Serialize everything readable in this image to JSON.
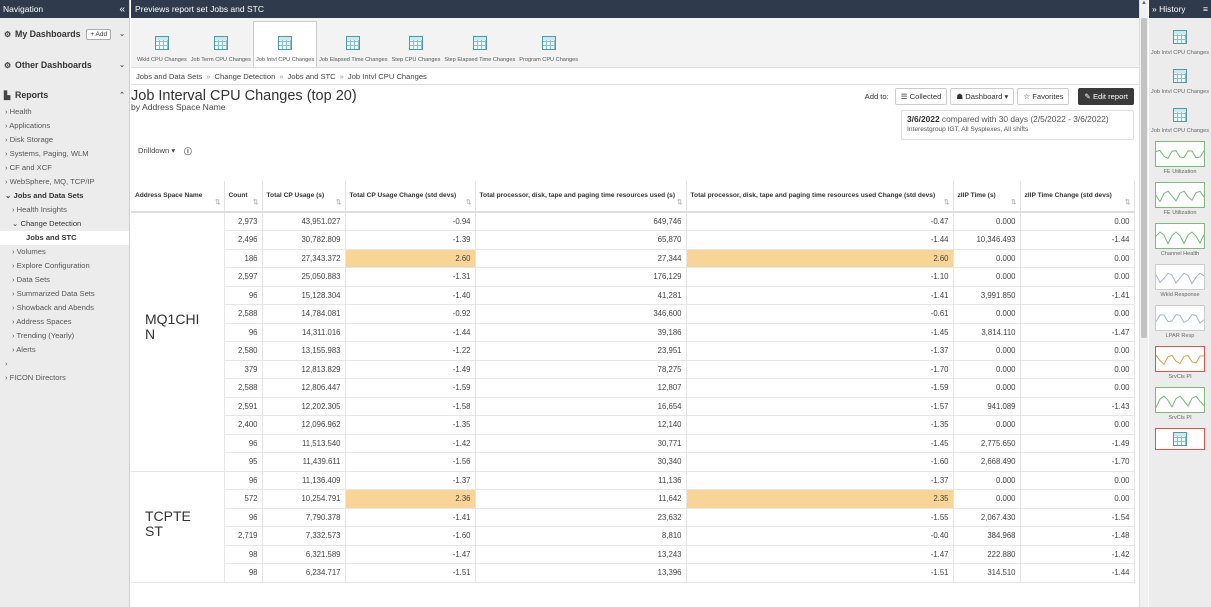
{
  "nav": {
    "header": "Navigation",
    "collapse_glyph": "«",
    "my_dashboards": "My Dashboards",
    "add_label": "+ Add",
    "other_dashboards": "Other Dashboards",
    "reports": "Reports",
    "items": [
      {
        "label": "› Health",
        "level": 1
      },
      {
        "label": "› Applications",
        "level": 1
      },
      {
        "label": "› Disk Storage",
        "level": 1
      },
      {
        "label": "› Systems, Paging, WLM",
        "level": 1
      },
      {
        "label": "› CF and XCF",
        "level": 1
      },
      {
        "label": "› WebSphere, MQ, TCP/IP",
        "level": 1
      },
      {
        "label": "⌄ Jobs and Data Sets",
        "level": 1,
        "bold": true
      },
      {
        "label": "› Health Insights",
        "level": 2
      },
      {
        "label": "⌄ Change Detection",
        "level": 2,
        "open": true
      },
      {
        "label": "Jobs and STC",
        "level": 3
      },
      {
        "label": "› Volumes",
        "level": 2
      },
      {
        "label": "› Explore Configuration",
        "level": 2
      },
      {
        "label": "› Data Sets",
        "level": 2
      },
      {
        "label": "› Summarized Data Sets",
        "level": 2
      },
      {
        "label": "› Showback and Abends",
        "level": 2
      },
      {
        "label": "› Address Spaces",
        "level": 2
      },
      {
        "label": "› Trending (Yearly)",
        "level": 2
      },
      {
        "label": "› Alerts",
        "level": 2
      },
      {
        "label": "›",
        "level": 1
      },
      {
        "label": "› FICON Directors",
        "level": 1
      }
    ]
  },
  "main": {
    "topbar": "Previews report set Jobs and STC",
    "reports": [
      {
        "label": "Wkld CPU Changes",
        "active": false
      },
      {
        "label": "Job Term CPU Changes",
        "active": false
      },
      {
        "label": "Job Intvl CPU Changes",
        "active": true
      },
      {
        "label": "Job Elapsed Time Changes",
        "active": false
      },
      {
        "label": "Step CPU Changes",
        "active": false
      },
      {
        "label": "Step Elapsed Time Changes",
        "active": false
      },
      {
        "label": "Program CPU Changes",
        "active": false
      }
    ],
    "breadcrumb": [
      "Jobs and Data Sets",
      "Change Detection",
      "Jobs and STC",
      "Job Intvl CPU Changes"
    ],
    "breadcrumb_sep": "»",
    "title": "Job Interval CPU Changes (top 20)",
    "subtitle": "by Address Space Name",
    "actions": {
      "add_to": "Add to:",
      "collected": "☰ Collected",
      "dashboard": "☗ Dashboard ▾",
      "favorites": "☆ Favorites",
      "edit": "✎ Edit report"
    },
    "date": {
      "date_bold": "3/6/2022",
      "compare_text": " compared with 30 days (2/5/2022 - 3/6/2022)",
      "filters": "Interestgroup IGT, All Sysplexes, All shifts"
    },
    "drilldown": "Drilldown ▾",
    "info_icon": "ⓘ"
  },
  "table": {
    "columns": [
      "Address Space Name",
      "Count",
      "Total CP Usage (s)",
      "Total CP Usage Change (std devs)",
      "Total processor, disk, tape and paging time resources used (s)",
      "Total processor, disk, tape and paging time resources used Change (std devs)",
      "zIIP Time (s)",
      "zIIP Time Change (std devs)"
    ],
    "groups": [
      {
        "name": "MQ1CHI\nN",
        "rows": 14
      },
      {
        "name": "TCPTE\nST",
        "rows": 6
      }
    ],
    "rows": [
      [
        "2,973",
        "43,951.027",
        "-0.94",
        "649,746",
        "-0.47",
        "0.000",
        "0.00"
      ],
      [
        "2,496",
        "30,782.809",
        "-1.39",
        "65,870",
        "-1.44",
        "10,346.493",
        "-1.44"
      ],
      [
        "186",
        "27,343.372",
        "2.60",
        "27,344",
        "2.60",
        "0.000",
        "0.00"
      ],
      [
        "2,597",
        "25,050.883",
        "-1.31",
        "176,129",
        "-1.10",
        "0.000",
        "0.00"
      ],
      [
        "96",
        "15,128.304",
        "-1.40",
        "41,281",
        "-1.41",
        "3,991.850",
        "-1.41"
      ],
      [
        "2,588",
        "14,784.081",
        "-0.92",
        "346,600",
        "-0.61",
        "0.000",
        "0.00"
      ],
      [
        "96",
        "14,311.016",
        "-1.44",
        "39,186",
        "-1.45",
        "3,814.110",
        "-1.47"
      ],
      [
        "2,580",
        "13,155.983",
        "-1.22",
        "23,951",
        "-1.37",
        "0.000",
        "0.00"
      ],
      [
        "379",
        "12,813.829",
        "-1.49",
        "78,275",
        "-1.70",
        "0.000",
        "0.00"
      ],
      [
        "2,588",
        "12,806.447",
        "-1.59",
        "12,807",
        "-1.59",
        "0.000",
        "0.00"
      ],
      [
        "2,591",
        "12,202.305",
        "-1.58",
        "16,654",
        "-1.57",
        "941.089",
        "-1.43"
      ],
      [
        "2,400",
        "12,096.962",
        "-1.35",
        "12,140",
        "-1.35",
        "0.000",
        "0.00"
      ],
      [
        "96",
        "11,513.540",
        "-1.42",
        "30,771",
        "-1.45",
        "2,775.650",
        "-1.49"
      ],
      [
        "95",
        "11,439.611",
        "-1.56",
        "30,340",
        "-1.60",
        "2,668.490",
        "-1.70"
      ],
      [
        "96",
        "11,136.409",
        "-1.37",
        "11,136",
        "-1.37",
        "0.000",
        "0.00"
      ],
      [
        "572",
        "10,254.791",
        "2.36",
        "11,642",
        "2.35",
        "0.000",
        "0.00"
      ],
      [
        "96",
        "7,790.378",
        "-1.41",
        "23,632",
        "-1.55",
        "2,067.430",
        "-1.54"
      ],
      [
        "2,719",
        "7,332.573",
        "-1.60",
        "8,810",
        "-0.40",
        "384.968",
        "-1.48"
      ],
      [
        "98",
        "6,321.589",
        "-1.47",
        "13,243",
        "-1.47",
        "222.880",
        "-1.42"
      ],
      [
        "98",
        "6,234.717",
        "-1.51",
        "13,396",
        "-1.51",
        "314.510",
        "-1.44"
      ]
    ],
    "highlight_rows": [
      2,
      15
    ]
  },
  "history": {
    "header": "» History",
    "menu_glyph": "≡",
    "items": [
      {
        "label": "Job Intvl CPU Changes",
        "kind": "table"
      },
      {
        "label": "Job Intvl CPU Changes",
        "kind": "table"
      },
      {
        "label": "Job Intvl CPU Changes",
        "kind": "table"
      },
      {
        "label": "FE Utilization",
        "kind": "chart-green"
      },
      {
        "label": "FE Utilization",
        "kind": "chart-green"
      },
      {
        "label": "Channel Health",
        "kind": "chart-green"
      },
      {
        "label": "Wkld Response",
        "kind": "chart-gray"
      },
      {
        "label": "LPAR Resp",
        "kind": "chart-gray"
      },
      {
        "label": "SrvCls PI",
        "kind": "chart-red"
      },
      {
        "label": "SrvCls PI",
        "kind": "chart-green"
      },
      {
        "label": "",
        "kind": "table-red"
      }
    ]
  },
  "colors": {
    "header_bg": "#2f3b4c",
    "highlight": "#f8d596"
  }
}
